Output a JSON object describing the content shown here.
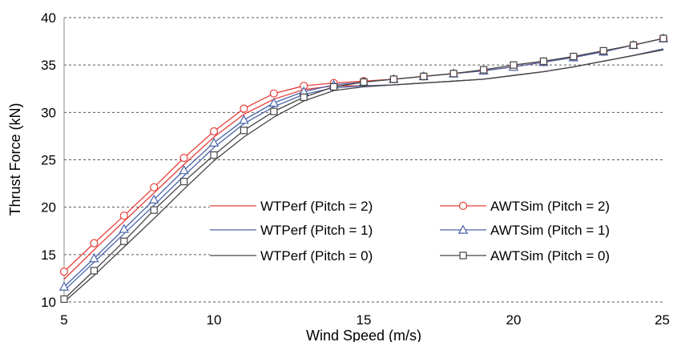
{
  "chart_data": {
    "type": "line",
    "xlabel": "Wind Speed (m/s)",
    "ylabel": "Thrust Force (kN)",
    "xlim": [
      5,
      25
    ],
    "ylim": [
      10,
      40
    ],
    "xticks": [
      "5",
      "10",
      "15",
      "20",
      "25"
    ],
    "yticks": [
      "10",
      "15",
      "20",
      "25",
      "30",
      "35",
      "40"
    ],
    "grid": "horizontal dashed",
    "legend_position": "center-right, inside plot",
    "series": [
      {
        "name": "WTPerf (Pitch = 2)",
        "color": "#e8403a",
        "marker": "none",
        "x": [
          5,
          6,
          7,
          8,
          9,
          10,
          11,
          12,
          13,
          14,
          15,
          16,
          17,
          18,
          19,
          20,
          21,
          22,
          23,
          24,
          25
        ],
        "y": [
          12.4,
          15.5,
          18.5,
          21.5,
          24.5,
          27.4,
          29.8,
          31.4,
          32.4,
          32.8,
          32.8,
          32.9,
          33.1,
          33.3,
          33.5,
          33.9,
          34.3,
          34.8,
          35.4,
          36.0,
          36.7
        ]
      },
      {
        "name": "AWTSim (Pitch = 2)",
        "color": "#e8403a",
        "marker": "circle",
        "x": [
          5,
          6,
          7,
          8,
          9,
          10,
          11,
          12,
          13,
          14,
          15,
          16,
          17,
          18,
          19,
          20,
          21,
          22,
          23,
          24,
          25
        ],
        "y": [
          13.2,
          16.2,
          19.1,
          22.1,
          25.2,
          28.0,
          30.4,
          32.0,
          32.8,
          33.1,
          33.3,
          33.5,
          33.8,
          34.1,
          34.4,
          34.8,
          35.3,
          35.8,
          36.4,
          37.1,
          37.8
        ]
      },
      {
        "name": "WTPerf (Pitch = 1)",
        "color": "#4a63a8",
        "marker": "none",
        "x": [
          5,
          6,
          7,
          8,
          9,
          10,
          11,
          12,
          13,
          14,
          15,
          16,
          17,
          18,
          19,
          20,
          21,
          22,
          23,
          24,
          25
        ],
        "y": [
          11.2,
          14.2,
          17.2,
          20.2,
          23.3,
          26.3,
          28.8,
          30.6,
          31.9,
          32.6,
          32.8,
          32.9,
          33.1,
          33.3,
          33.5,
          33.9,
          34.3,
          34.8,
          35.4,
          36.0,
          36.7
        ]
      },
      {
        "name": "AWTSim (Pitch = 1)",
        "color": "#4a63a8",
        "marker": "triangle",
        "x": [
          5,
          6,
          7,
          8,
          9,
          10,
          11,
          12,
          13,
          14,
          15,
          16,
          17,
          18,
          19,
          20,
          21,
          22,
          23,
          24,
          25
        ],
        "y": [
          11.6,
          14.6,
          17.7,
          20.8,
          23.9,
          26.8,
          29.2,
          31.0,
          32.2,
          32.9,
          33.2,
          33.5,
          33.8,
          34.1,
          34.4,
          34.8,
          35.3,
          35.8,
          36.4,
          37.1,
          37.8
        ]
      },
      {
        "name": "WTPerf (Pitch = 0)",
        "color": "#444444",
        "marker": "none",
        "x": [
          5,
          6,
          7,
          8,
          9,
          10,
          11,
          12,
          13,
          14,
          15,
          16,
          17,
          18,
          19,
          20,
          21,
          22,
          23,
          24,
          25
        ],
        "y": [
          10.0,
          12.8,
          15.8,
          18.8,
          21.9,
          24.9,
          27.4,
          29.5,
          31.2,
          32.3,
          32.7,
          32.9,
          33.1,
          33.3,
          33.5,
          33.9,
          34.3,
          34.8,
          35.4,
          36.0,
          36.6
        ]
      },
      {
        "name": "AWTSim (Pitch = 0)",
        "color": "#444444",
        "marker": "square",
        "x": [
          5,
          6,
          7,
          8,
          9,
          10,
          11,
          12,
          13,
          14,
          15,
          16,
          17,
          18,
          19,
          20,
          21,
          22,
          23,
          24,
          25
        ],
        "y": [
          10.3,
          13.3,
          16.4,
          19.7,
          22.7,
          25.5,
          28.1,
          30.1,
          31.6,
          32.7,
          33.2,
          33.5,
          33.8,
          34.1,
          34.5,
          35.0,
          35.4,
          35.9,
          36.5,
          37.1,
          37.8
        ]
      }
    ]
  }
}
